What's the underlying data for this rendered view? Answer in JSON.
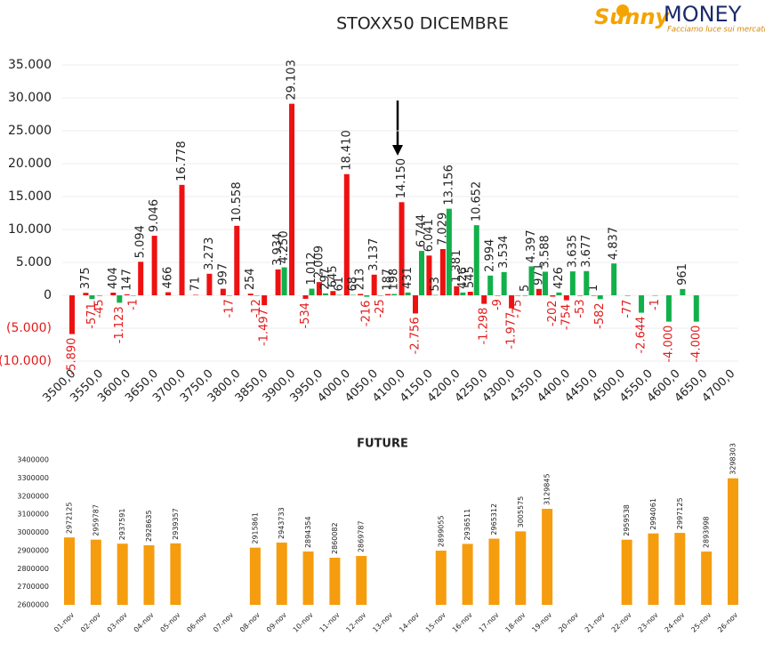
{
  "logo": {
    "brand": "Sunny",
    "brand2": "MONEY",
    "tagline": "Facciamo luce sui mercati"
  },
  "chart_data": [
    {
      "type": "bar",
      "title": "STOXX50 DICEMBRE",
      "categories": [
        "3500,0",
        null,
        "3550,0",
        null,
        "3600,0",
        null,
        "3650,0",
        null,
        "3700,0",
        null,
        "3750,0",
        null,
        "3800,0",
        null,
        "3850,0",
        null,
        "3900,0",
        null,
        "3950,0",
        null,
        "4000,0",
        null,
        "4050,0",
        null,
        "4100,0",
        null,
        "4150,0",
        null,
        "4200,0",
        null,
        "4250,0",
        null,
        "4300,0",
        null,
        "4350,0",
        null,
        "4400,0",
        null,
        "4450,0",
        null,
        "4500,0",
        null,
        "4550,0",
        null,
        "4600,0",
        null,
        "4650,0",
        null,
        "4700,0"
      ],
      "series": [
        {
          "color": "#ee1111",
          "values": [
            -5890,
            375,
            -45,
            404,
            147,
            5094,
            9046,
            466,
            16778,
            71,
            3273,
            997,
            10558,
            254,
            -1497,
            3934,
            29103,
            -534,
            2009,
            645,
            18410,
            213,
            3137,
            187,
            14150,
            -2756,
            6041,
            7029,
            1381,
            545,
            -1298,
            -9,
            -1977,
            5,
            971,
            -202,
            -754,
            -53,
            1,
            null,
            null,
            null,
            null,
            null,
            null,
            null,
            null,
            null,
            null
          ],
          "value_labels": [
            "-5.890",
            "375",
            "-45",
            "404",
            "147",
            "5.094",
            "9.046",
            "466",
            "16.778",
            "71",
            "3.273",
            "997",
            "10.558",
            "254",
            "-1.497",
            "3.934",
            "29.103",
            "-534",
            "2.009",
            "645",
            "18.410",
            "213",
            "3.137",
            "187",
            "14.150",
            "-2.756",
            "6.041",
            "7.029",
            "1.381",
            "545",
            "-1.298",
            "-9",
            "-1.977",
            "5",
            "971",
            "-202",
            "-754",
            "-53",
            "1",
            null,
            null,
            null,
            null,
            null,
            null,
            null,
            null,
            null,
            null
          ]
        },
        {
          "color": "#12b04a",
          "values": [
            null,
            -571,
            null,
            -1123,
            -1,
            null,
            null,
            null,
            null,
            null,
            null,
            -17,
            null,
            -12,
            null,
            4250,
            null,
            1012,
            297,
            61,
            68,
            -216,
            -25,
            198,
            431,
            6744,
            53,
            13156,
            426,
            10652,
            2994,
            3534,
            -75,
            4397,
            3588,
            426,
            3635,
            3677,
            -582,
            4837,
            -77,
            -2644,
            -1,
            -4000,
            961,
            -4000,
            null,
            null,
            null
          ],
          "value_labels": [
            null,
            "-571",
            null,
            "-1.123",
            "-1",
            null,
            null,
            null,
            null,
            null,
            null,
            "-17",
            null,
            "-12",
            null,
            "4.250",
            null,
            "1.012",
            "297",
            "61",
            "68",
            "-216",
            "-25",
            "198",
            "431",
            "6.744",
            "53",
            "13.156",
            "426",
            "10.652",
            "2.994",
            "3.534",
            "-75",
            "4.397",
            "3.588",
            "426",
            "3.635",
            "3.677",
            "-582",
            "4.837",
            "-77",
            "-2.644",
            "-1",
            "-4.000",
            "961",
            "-4.000",
            null,
            null,
            null
          ]
        }
      ],
      "ylim": [
        -10000,
        35000
      ],
      "yticks": [
        {
          "value": -10000,
          "label": "(10.000)"
        },
        {
          "value": -5000,
          "label": "(5.000)"
        },
        0,
        {
          "value": 5000,
          "label": "5.000"
        },
        {
          "value": 10000,
          "label": "10.000"
        },
        {
          "value": 15000,
          "label": "15.000"
        },
        {
          "value": 20000,
          "label": "20.000"
        },
        {
          "value": 25000,
          "label": "25.000"
        },
        {
          "value": 30000,
          "label": "30.000"
        },
        {
          "value": 35000,
          "label": "35.000"
        }
      ],
      "grid": true
    },
    {
      "type": "bar",
      "title": "FUTURE",
      "categories": [
        "01-nov",
        "02-nov",
        "03-nov",
        "04-nov",
        "05-nov",
        "06-nov",
        "07-nov",
        "08-nov",
        "09-nov",
        "10-nov",
        "11-nov",
        "12-nov",
        "13-nov",
        "14-nov",
        "15-nov",
        "16-nov",
        "17-nov",
        "18-nov",
        "19-nov",
        "20-nov",
        "21-nov",
        "22-nov",
        "23-nov",
        "24-nov",
        "25-nov",
        "26-nov"
      ],
      "values": [
        2972125,
        2959787,
        2937591,
        2928635,
        2939357,
        null,
        null,
        2915861,
        2943733,
        2894354,
        2860082,
        2869787,
        null,
        null,
        2899055,
        2936511,
        2965312,
        3005575,
        3129845,
        null,
        null,
        2959538,
        2994061,
        2997125,
        2893998,
        3298303
      ],
      "color": "#f59d0e",
      "ylim": [
        2600000,
        3400000
      ],
      "yticks": [
        2600000,
        2700000,
        2800000,
        2900000,
        3000000,
        3100000,
        3200000,
        3300000,
        3400000
      ],
      "grid": false
    }
  ]
}
